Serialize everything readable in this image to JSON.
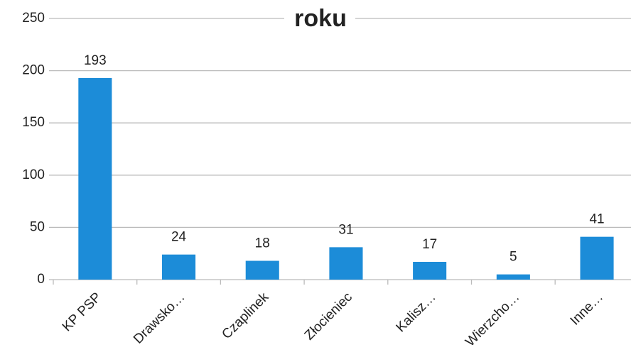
{
  "chart_data": {
    "type": "bar",
    "title": "roku",
    "categories": [
      "KP PSP",
      "Drawsko…",
      "Czaplinek",
      "Złocieniec",
      "Kalisz…",
      "Wierzcho…",
      "Inne…"
    ],
    "values": [
      193,
      24,
      18,
      31,
      17,
      5,
      41
    ],
    "color": "#1c8cd8",
    "ylim": [
      0,
      250
    ],
    "yticks": [
      0,
      50,
      100,
      150,
      200,
      250
    ],
    "grid": true
  }
}
